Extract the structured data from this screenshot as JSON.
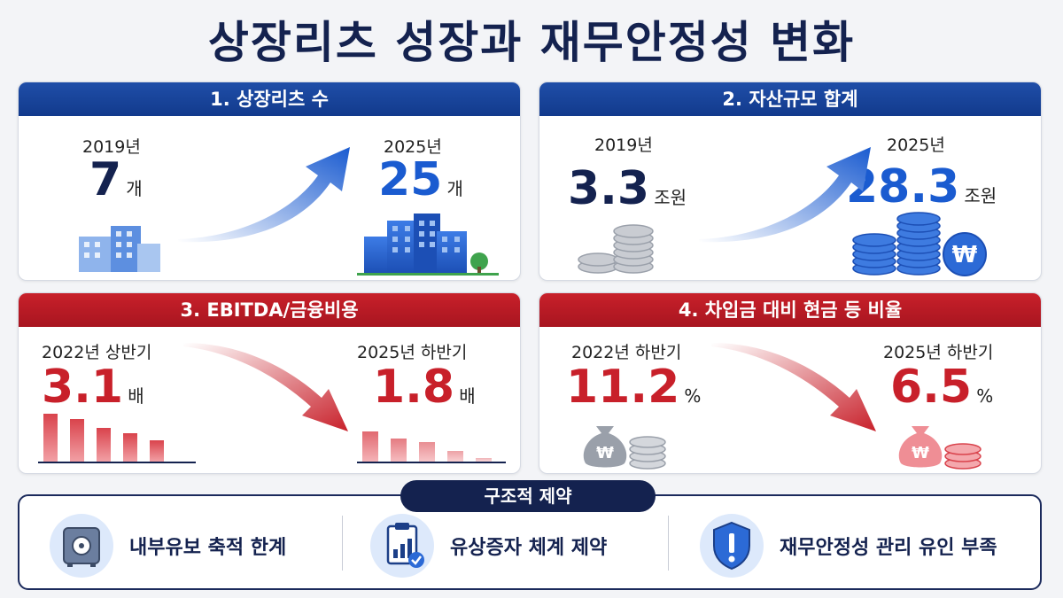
{
  "title": "상장리츠 성장과 재무안정성 변화",
  "cards": [
    {
      "heading": "1. 상장리츠 수",
      "from": {
        "label": "2019년",
        "value": "7",
        "unit": "개"
      },
      "to": {
        "label": "2025년",
        "value": "25",
        "unit": "개"
      }
    },
    {
      "heading": "2. 자산규모 합계",
      "from": {
        "label": "2019년",
        "value": "3.3",
        "unit": "조원"
      },
      "to": {
        "label": "2025년",
        "value": "28.3",
        "unit": "조원"
      }
    },
    {
      "heading": "3. EBITDA/금융비용",
      "from": {
        "label": "2022년 상반기",
        "value": "3.1",
        "unit": "배"
      },
      "to": {
        "label": "2025년 하반기",
        "value": "1.8",
        "unit": "배"
      }
    },
    {
      "heading": "4. 차입금 대비 현금 등 비율",
      "from": {
        "label": "2022년 하반기",
        "value": "11.2",
        "unit": "%"
      },
      "to": {
        "label": "2025년 하반기",
        "value": "6.5",
        "unit": "%"
      }
    }
  ],
  "constraints": {
    "tag": "구조적 제약",
    "items": [
      {
        "label": "내부유보 축적 한계",
        "icon": "safe-icon"
      },
      {
        "label": "유상증자 체계 제약",
        "icon": "clipboard-chart-icon"
      },
      {
        "label": "재무안정성 관리 유인 부족",
        "icon": "shield-alert-icon"
      }
    ]
  },
  "colors": {
    "navy": "#14224f",
    "blue": "#1a5bd0",
    "red": "#c8202a"
  }
}
